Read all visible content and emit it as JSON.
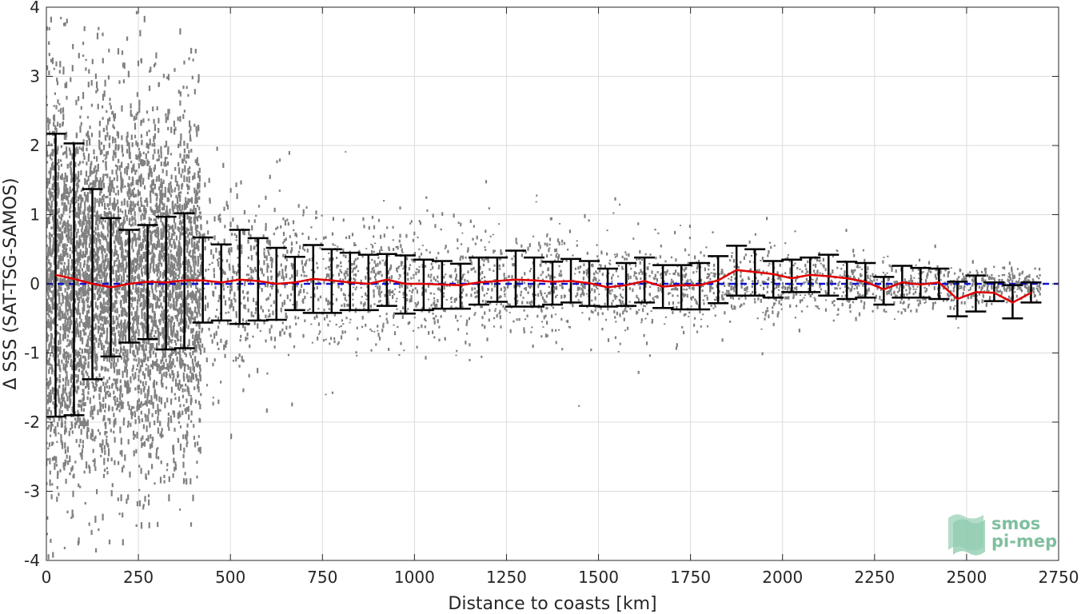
{
  "chart_data": {
    "type": "scatter",
    "xlabel": "Distance to coasts [km]",
    "ylabel": "Δ SSS (SAT-TSG-SAMOS)",
    "xlim": [
      0,
      2750
    ],
    "ylim": [
      -4,
      4
    ],
    "x_ticks": [
      0,
      250,
      500,
      750,
      1000,
      1250,
      1500,
      1750,
      2000,
      2250,
      2500,
      2750
    ],
    "y_ticks": [
      -4,
      -3,
      -2,
      -1,
      0,
      1,
      2,
      3,
      4
    ],
    "grid": true,
    "reference_line": {
      "y": 0,
      "color": "#1010d0",
      "style": "dashed"
    },
    "scatter_color": "#808080",
    "mean_line_color": "#e00000",
    "errorbar_color": "#000000",
    "bins": {
      "x": [
        25,
        75,
        125,
        175,
        225,
        275,
        325,
        375,
        425,
        475,
        525,
        575,
        625,
        675,
        725,
        775,
        825,
        875,
        925,
        975,
        1025,
        1075,
        1125,
        1175,
        1225,
        1275,
        1325,
        1375,
        1425,
        1475,
        1525,
        1575,
        1625,
        1675,
        1725,
        1775,
        1825,
        1875,
        1925,
        1975,
        2025,
        2075,
        2125,
        2175,
        2225,
        2275,
        2325,
        2375,
        2425,
        2475,
        2525,
        2575,
        2625,
        2675
      ],
      "mean": [
        0.13,
        0.07,
        0.0,
        -0.05,
        0.0,
        0.03,
        0.02,
        0.05,
        0.05,
        0.02,
        0.06,
        0.04,
        0.0,
        0.02,
        0.07,
        0.05,
        0.02,
        0.0,
        0.06,
        0.0,
        0.0,
        -0.01,
        -0.02,
        0.02,
        0.04,
        0.06,
        0.05,
        0.03,
        0.04,
        0.01,
        -0.05,
        -0.02,
        0.04,
        -0.04,
        -0.02,
        -0.02,
        0.05,
        0.2,
        0.17,
        0.14,
        0.08,
        0.13,
        0.11,
        0.08,
        0.03,
        -0.08,
        0.02,
        -0.01,
        0.02,
        -0.22,
        -0.12,
        -0.13,
        -0.27,
        -0.13
      ],
      "lower": [
        -1.92,
        -1.9,
        -1.38,
        -1.05,
        -0.85,
        -0.8,
        -0.95,
        -0.93,
        -0.56,
        -0.53,
        -0.58,
        -0.53,
        -0.52,
        -0.38,
        -0.42,
        -0.42,
        -0.38,
        -0.38,
        -0.32,
        -0.43,
        -0.38,
        -0.36,
        -0.36,
        -0.3,
        -0.26,
        -0.33,
        -0.33,
        -0.3,
        -0.27,
        -0.32,
        -0.33,
        -0.32,
        -0.27,
        -0.35,
        -0.37,
        -0.37,
        -0.28,
        -0.17,
        -0.17,
        -0.2,
        -0.12,
        -0.12,
        -0.17,
        -0.22,
        -0.2,
        -0.3,
        -0.2,
        -0.2,
        -0.22,
        -0.47,
        -0.4,
        -0.25,
        -0.5,
        -0.27
      ],
      "upper": [
        2.17,
        2.03,
        1.37,
        0.95,
        0.78,
        0.85,
        0.97,
        1.02,
        0.67,
        0.57,
        0.78,
        0.66,
        0.52,
        0.39,
        0.56,
        0.5,
        0.45,
        0.42,
        0.43,
        0.41,
        0.35,
        0.33,
        0.29,
        0.38,
        0.38,
        0.48,
        0.38,
        0.32,
        0.36,
        0.33,
        0.22,
        0.3,
        0.38,
        0.27,
        0.27,
        0.3,
        0.4,
        0.55,
        0.5,
        0.33,
        0.35,
        0.38,
        0.42,
        0.32,
        0.3,
        0.1,
        0.26,
        0.23,
        0.22,
        0.03,
        0.12,
        0.02,
        -0.02,
        0.02
      ]
    }
  },
  "logo": {
    "line1": "smos",
    "line2": "pi-mep"
  }
}
